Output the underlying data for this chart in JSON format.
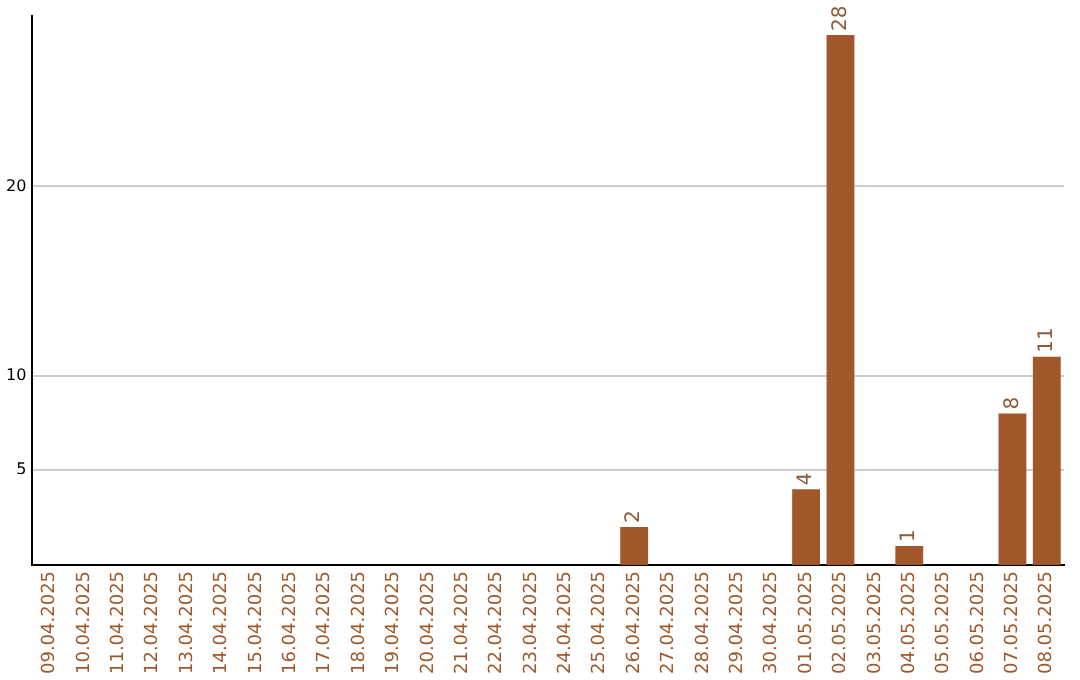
{
  "chart_data": {
    "type": "bar",
    "categories": [
      "09.04.2025",
      "10.04.2025",
      "11.04.2025",
      "12.04.2025",
      "13.04.2025",
      "14.04.2025",
      "15.04.2025",
      "16.04.2025",
      "17.04.2025",
      "18.04.2025",
      "19.04.2025",
      "20.04.2025",
      "21.04.2025",
      "22.04.2025",
      "23.04.2025",
      "24.04.2025",
      "25.04.2025",
      "26.04.2025",
      "27.04.2025",
      "28.04.2025",
      "29.04.2025",
      "30.04.2025",
      "01.05.2025",
      "02.05.2025",
      "03.05.2025",
      "04.05.2025",
      "05.05.2025",
      "06.05.2025",
      "07.05.2025",
      "08.05.2025"
    ],
    "values": [
      0,
      0,
      0,
      0,
      0,
      0,
      0,
      0,
      0,
      0,
      0,
      0,
      0,
      0,
      0,
      0,
      0,
      2,
      0,
      0,
      0,
      0,
      4,
      28,
      0,
      1,
      0,
      0,
      8,
      11
    ],
    "value_labels": [
      null,
      null,
      null,
      null,
      null,
      null,
      null,
      null,
      null,
      null,
      null,
      null,
      null,
      null,
      null,
      null,
      null,
      "2",
      null,
      null,
      null,
      null,
      "4",
      "28",
      null,
      "1",
      null,
      null,
      "8",
      "11"
    ],
    "color": "#a0582a",
    "ylim": [
      0,
      29
    ],
    "yticks": [
      5,
      10,
      20
    ],
    "grid": "y"
  }
}
